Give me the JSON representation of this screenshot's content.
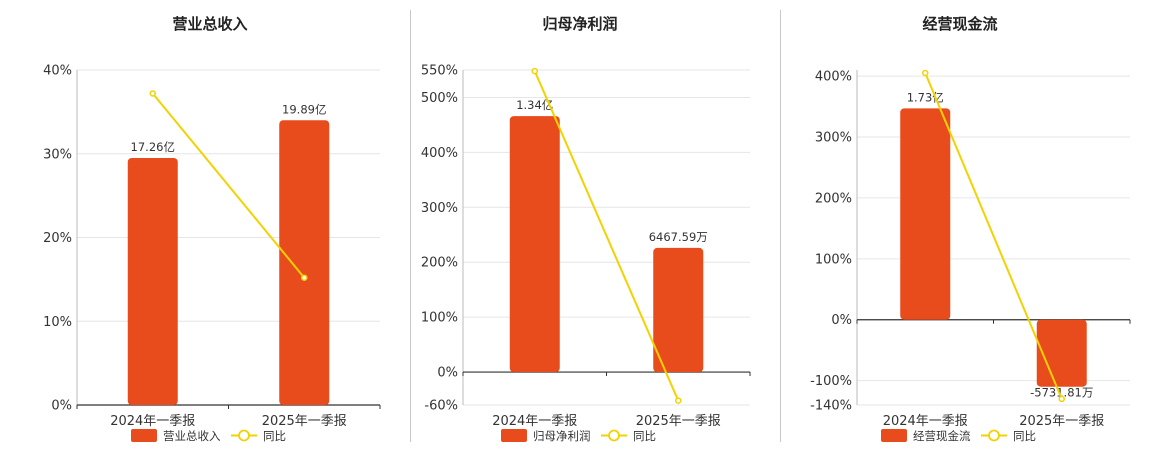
{
  "colors": {
    "bar": "#e84c1c",
    "line": "#f2d200",
    "grid": "#e6e6e6",
    "axis": "#333333"
  },
  "legend": {
    "line_label": "同比"
  },
  "chart_data": [
    {
      "type": "bar",
      "title": "营业总收入",
      "categories": [
        "2024年一季报",
        "2025年一季报"
      ],
      "bar_series": {
        "name": "营业总收入",
        "values": [
          29.5,
          34
        ],
        "labels": [
          "17.26亿",
          "19.89亿"
        ]
      },
      "line_series": {
        "name": "同比",
        "values": [
          37.2,
          15.2
        ]
      },
      "y_ticks": [
        0,
        10,
        20,
        30,
        40
      ],
      "y_tick_labels": [
        "0%",
        "10%",
        "20%",
        "30%",
        "40%"
      ],
      "ylim": [
        0,
        40
      ]
    },
    {
      "type": "bar",
      "title": "归母净利润",
      "categories": [
        "2024年一季报",
        "2025年一季报"
      ],
      "bar_series": {
        "name": "归母净利润",
        "values": [
          466,
          226
        ],
        "labels": [
          "1.34亿",
          "6467.59万"
        ]
      },
      "line_series": {
        "name": "同比",
        "values": [
          548,
          -52
        ]
      },
      "y_ticks": [
        -60,
        0,
        100,
        200,
        300,
        400,
        500,
        550
      ],
      "y_tick_labels": [
        "-60%",
        "0%",
        "100%",
        "200%",
        "300%",
        "400%",
        "500%",
        "550%"
      ],
      "ylim": [
        -60,
        550
      ]
    },
    {
      "type": "bar",
      "title": "经营现金流",
      "categories": [
        "2024年一季报",
        "2025年一季报"
      ],
      "bar_series": {
        "name": "经营现金流",
        "values": [
          347,
          -110
        ],
        "labels": [
          "1.73亿",
          "-5731.81万"
        ]
      },
      "line_series": {
        "name": "同比",
        "values": [
          405,
          -130
        ]
      },
      "y_ticks": [
        -140,
        -100,
        0,
        100,
        200,
        300,
        400
      ],
      "y_tick_labels": [
        "-140%",
        "-100%",
        "0%",
        "100%",
        "200%",
        "300%",
        "400%"
      ],
      "ylim": [
        -140,
        410
      ]
    }
  ]
}
